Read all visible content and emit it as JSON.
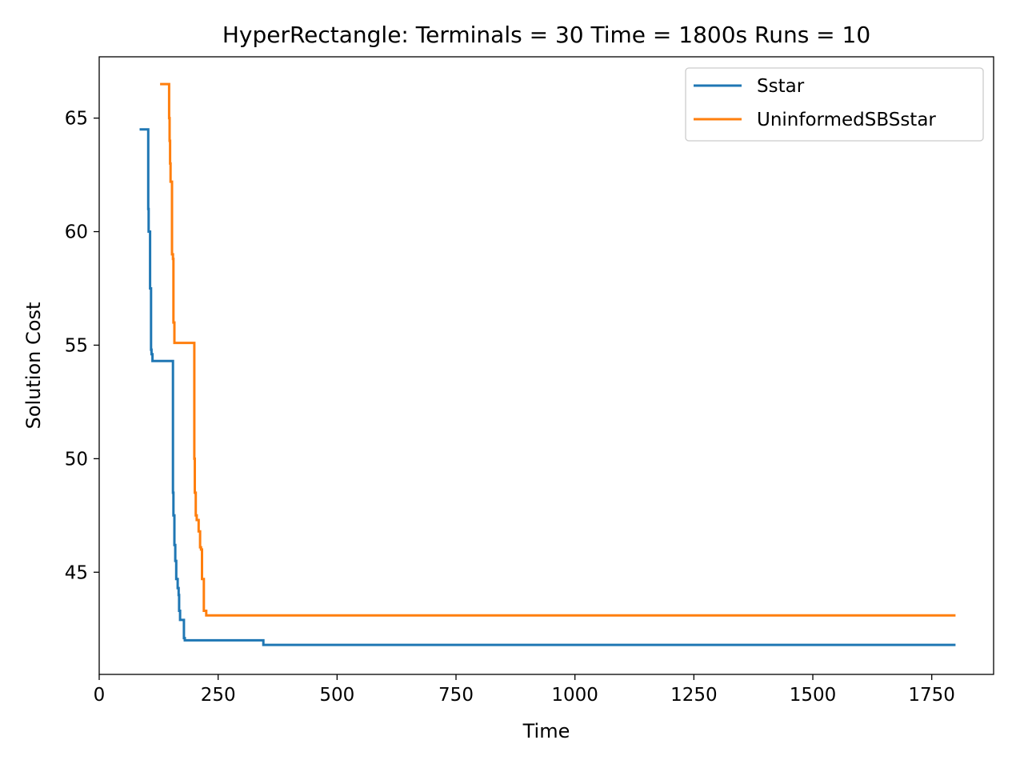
{
  "chart_data": {
    "type": "line",
    "title": "HyperRectangle:  Terminals = 30  Time = 1800s  Runs = 10",
    "xlabel": "Time",
    "ylabel": "Solution Cost",
    "xlim": [
      0,
      1880
    ],
    "ylim": [
      40.5,
      67.7
    ],
    "xticks": [
      0,
      250,
      500,
      750,
      1000,
      1250,
      1500,
      1750
    ],
    "yticks": [
      45,
      50,
      55,
      60,
      65
    ],
    "grid": false,
    "legend_position": "top-right",
    "series": [
      {
        "name": "Sstar",
        "color": "#1f77b4",
        "x": [
          85,
          103,
          103,
          104,
          104,
          107,
          107,
          109,
          109,
          110,
          110,
          112,
          112,
          155,
          155,
          156,
          156,
          158,
          158,
          160,
          160,
          162,
          162,
          165,
          165,
          167,
          167,
          168,
          168,
          170,
          170,
          178,
          178,
          180,
          180,
          185,
          185,
          345,
          345,
          1800
        ],
        "y": [
          64.5,
          64.5,
          61.0,
          61.0,
          60.0,
          60.0,
          57.5,
          57.5,
          54.8,
          54.8,
          54.6,
          54.6,
          54.3,
          54.3,
          48.5,
          48.5,
          47.5,
          47.5,
          46.2,
          46.2,
          45.5,
          45.5,
          44.7,
          44.7,
          44.3,
          44.3,
          44.0,
          44.0,
          43.3,
          43.3,
          42.9,
          42.9,
          42.1,
          42.1,
          42.0,
          42.0,
          42.0,
          42.0,
          41.8,
          41.8
        ]
      },
      {
        "name": "UninformedSBSstar",
        "color": "#ff7f0e",
        "x": [
          128,
          147,
          147,
          148,
          148,
          149,
          149,
          150,
          150,
          153,
          153,
          155,
          155,
          156,
          156,
          158,
          158,
          200,
          200,
          201,
          201,
          203,
          203,
          205,
          205,
          209,
          209,
          212,
          212,
          214,
          214,
          216,
          216,
          220,
          220,
          225,
          225,
          1800
        ],
        "y": [
          66.5,
          66.5,
          65.0,
          65.0,
          64.0,
          64.0,
          63.0,
          63.0,
          62.2,
          62.2,
          59.0,
          59.0,
          58.8,
          58.8,
          56.0,
          56.0,
          55.1,
          55.1,
          50.0,
          50.0,
          48.5,
          48.5,
          47.5,
          47.5,
          47.3,
          47.3,
          46.8,
          46.8,
          46.1,
          46.1,
          46.0,
          46.0,
          44.7,
          44.7,
          43.3,
          43.3,
          43.1,
          43.1
        ]
      }
    ]
  }
}
